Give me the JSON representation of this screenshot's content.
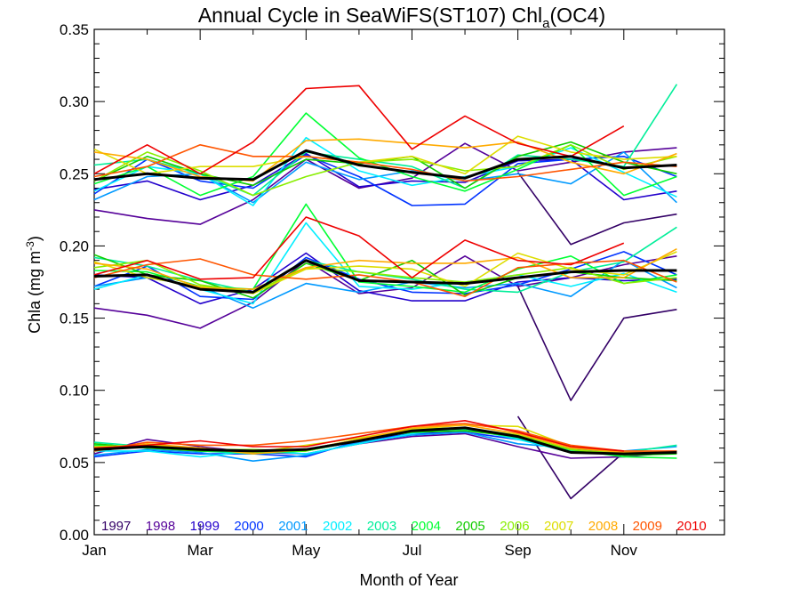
{
  "chart_data": {
    "type": "line",
    "title": "Annual Cycle in SeaWiFS(ST107) Chl",
    "title_subscript": "a",
    "title_suffix": "(OC4)",
    "xlabel": "Month of Year",
    "ylabel": "Chla (mg m",
    "ylabel_superscript": "-3",
    "ylabel_suffix": ")",
    "xlim": [
      1,
      12.9
    ],
    "ylim": [
      0,
      0.35
    ],
    "x_ticks": [
      1,
      3,
      5,
      7,
      9,
      11
    ],
    "x_tick_labels": [
      "Jan",
      "Mar",
      "May",
      "Jul",
      "Sep",
      "Nov"
    ],
    "y_ticks": [
      0.0,
      0.05,
      0.1,
      0.15,
      0.2,
      0.25,
      0.3,
      0.35
    ],
    "y_tick_labels": [
      "0.00",
      "0.05",
      "0.10",
      "0.15",
      "0.20",
      "0.25",
      "0.30",
      "0.35"
    ],
    "grid": false,
    "legend_placement": "bottom inside",
    "x": [
      1,
      2,
      3,
      4,
      5,
      6,
      7,
      8,
      9,
      10,
      11,
      12
    ],
    "groups": [
      "upper",
      "middle",
      "lower"
    ],
    "series": [
      {
        "name": "1997",
        "color": "#330066",
        "values": {
          "upper": [
            null,
            null,
            null,
            null,
            null,
            null,
            null,
            null,
            0.251,
            0.201,
            0.216,
            0.222
          ],
          "middle": [
            null,
            null,
            null,
            null,
            null,
            null,
            null,
            null,
            0.172,
            0.093,
            0.15,
            0.156
          ],
          "lower": [
            null,
            null,
            null,
            null,
            null,
            null,
            null,
            null,
            0.082,
            0.025,
            0.057,
            0.058
          ]
        }
      },
      {
        "name": "1998",
        "color": "#550099",
        "values": {
          "upper": [
            0.225,
            0.219,
            0.215,
            0.232,
            0.26,
            0.24,
            0.247,
            0.271,
            0.252,
            0.258,
            0.265,
            0.268
          ],
          "middle": [
            0.157,
            0.152,
            0.143,
            0.161,
            0.19,
            0.167,
            0.171,
            0.193,
            0.172,
            0.178,
            0.187,
            0.193
          ],
          "lower": [
            0.056,
            0.066,
            0.061,
            0.057,
            0.056,
            0.063,
            0.068,
            0.07,
            0.061,
            0.053,
            0.054,
            0.057
          ]
        }
      },
      {
        "name": "1999",
        "color": "#2200cc",
        "values": {
          "upper": [
            0.239,
            0.245,
            0.232,
            0.242,
            0.264,
            0.241,
            0.245,
            0.244,
            0.259,
            0.26,
            0.232,
            0.238
          ],
          "middle": [
            0.18,
            0.178,
            0.16,
            0.17,
            0.195,
            0.169,
            0.162,
            0.162,
            0.175,
            0.178,
            0.176,
            0.177
          ]
        }
      },
      {
        "name": "2000",
        "color": "#0033ff",
        "values": {
          "upper": [
            0.236,
            0.26,
            0.245,
            0.24,
            0.263,
            0.248,
            0.228,
            0.229,
            0.257,
            0.26,
            0.262,
            0.248
          ],
          "middle": [
            0.172,
            0.186,
            0.165,
            0.163,
            0.192,
            0.177,
            0.168,
            0.167,
            0.173,
            0.184,
            0.196,
            0.18
          ],
          "lower": [
            0.054,
            0.058,
            0.056,
            0.056,
            0.054,
            0.065,
            0.07,
            0.071,
            0.066,
            0.059,
            0.057,
            0.058
          ]
        }
      },
      {
        "name": "2001",
        "color": "#0099ff",
        "values": {
          "upper": [
            0.232,
            0.248,
            0.25,
            0.23,
            0.258,
            0.246,
            0.252,
            0.245,
            0.25,
            0.243,
            0.265,
            0.23
          ],
          "middle": [
            0.172,
            0.178,
            0.172,
            0.157,
            0.174,
            0.168,
            0.175,
            0.171,
            0.174,
            0.165,
            0.19,
            0.171
          ],
          "lower": [
            0.055,
            0.059,
            0.057,
            0.051,
            0.055,
            0.064,
            0.069,
            0.071,
            0.063,
            0.06,
            0.058,
            0.061
          ]
        }
      },
      {
        "name": "2002",
        "color": "#00eeff",
        "values": {
          "upper": [
            0.238,
            0.255,
            0.25,
            0.228,
            0.275,
            0.252,
            0.242,
            0.248,
            0.255,
            0.268,
            0.251,
            0.234
          ],
          "middle": [
            0.17,
            0.18,
            0.17,
            0.16,
            0.216,
            0.172,
            0.17,
            0.175,
            0.18,
            0.172,
            0.181,
            0.168
          ],
          "lower": [
            0.058,
            0.058,
            0.054,
            0.058,
            0.056,
            0.063,
            0.07,
            0.074,
            0.066,
            0.057,
            0.056,
            0.058
          ]
        }
      },
      {
        "name": "2003",
        "color": "#00ee99",
        "values": {
          "upper": [
            0.256,
            0.26,
            0.25,
            0.235,
            0.265,
            0.26,
            0.255,
            0.24,
            0.263,
            0.26,
            0.255,
            0.312
          ],
          "middle": [
            0.192,
            0.186,
            0.176,
            0.168,
            0.19,
            0.182,
            0.177,
            0.17,
            0.168,
            0.182,
            0.189,
            0.213
          ],
          "lower": [
            0.064,
            0.061,
            0.058,
            0.056,
            0.058,
            0.065,
            0.072,
            0.073,
            0.067,
            0.058,
            0.057,
            0.062
          ]
        }
      },
      {
        "name": "2004",
        "color": "#00ff33",
        "values": {
          "upper": [
            0.243,
            0.255,
            0.235,
            0.248,
            0.292,
            0.261,
            0.248,
            0.238,
            0.253,
            0.27,
            0.235,
            0.248
          ],
          "middle": [
            0.183,
            0.182,
            0.172,
            0.17,
            0.229,
            0.175,
            0.172,
            0.168,
            0.184,
            0.193,
            0.174,
            0.18
          ],
          "lower": [
            0.062,
            0.06,
            0.059,
            0.057,
            0.058,
            0.065,
            0.073,
            0.074,
            0.068,
            0.059,
            0.054,
            0.053
          ]
        }
      },
      {
        "name": "2005",
        "color": "#11cc00",
        "values": {
          "upper": [
            0.245,
            0.262,
            0.25,
            0.242,
            0.26,
            0.257,
            0.262,
            0.24,
            0.262,
            0.272,
            0.258,
            0.25
          ],
          "middle": [
            0.194,
            0.18,
            0.176,
            0.164,
            0.188,
            0.176,
            0.19,
            0.166,
            0.178,
            0.182,
            0.178,
            0.176
          ],
          "lower": [
            0.063,
            0.06,
            0.058,
            0.058,
            0.059,
            0.066,
            0.071,
            0.072,
            0.068,
            0.059,
            0.055,
            0.056
          ]
        }
      },
      {
        "name": "2006",
        "color": "#88ee00",
        "values": {
          "upper": [
            0.245,
            0.265,
            0.252,
            0.235,
            0.248,
            0.258,
            0.26,
            0.252,
            0.255,
            0.27,
            0.253,
            0.262
          ],
          "middle": [
            0.185,
            0.19,
            0.173,
            0.168,
            0.185,
            0.182,
            0.178,
            0.175,
            0.18,
            0.185,
            0.174,
            0.178
          ],
          "lower": [
            0.06,
            0.061,
            0.059,
            0.059,
            0.058,
            0.066,
            0.072,
            0.074,
            0.069,
            0.059,
            0.056,
            0.057
          ]
        }
      },
      {
        "name": "2007",
        "color": "#dddd00",
        "values": {
          "upper": [
            0.267,
            0.25,
            0.255,
            0.255,
            0.262,
            0.258,
            0.262,
            0.25,
            0.276,
            0.265,
            0.26,
            0.262
          ],
          "middle": [
            0.189,
            0.178,
            0.172,
            0.167,
            0.184,
            0.186,
            0.184,
            0.172,
            0.195,
            0.184,
            0.18,
            0.196
          ],
          "lower": [
            0.061,
            0.062,
            0.06,
            0.057,
            0.062,
            0.067,
            0.073,
            0.076,
            0.075,
            0.061,
            0.057,
            0.057
          ]
        }
      },
      {
        "name": "2008",
        "color": "#ffaa00",
        "values": {
          "upper": [
            0.265,
            0.26,
            0.248,
            0.245,
            0.273,
            0.274,
            0.271,
            0.268,
            0.272,
            0.258,
            0.25,
            0.264
          ],
          "middle": [
            0.188,
            0.184,
            0.171,
            0.17,
            0.185,
            0.19,
            0.188,
            0.188,
            0.192,
            0.178,
            0.178,
            0.198
          ],
          "lower": [
            0.058,
            0.063,
            0.06,
            0.056,
            0.059,
            0.066,
            0.074,
            0.076,
            0.07,
            0.06,
            0.057,
            0.057
          ]
        }
      },
      {
        "name": "2009",
        "color": "#ff5500",
        "values": {
          "upper": [
            0.248,
            0.255,
            0.27,
            0.262,
            0.262,
            0.258,
            0.253,
            0.245,
            0.248,
            0.253,
            0.258,
            0.255
          ],
          "middle": [
            0.178,
            0.187,
            0.191,
            0.18,
            0.177,
            0.18,
            0.175,
            0.165,
            0.185,
            0.188,
            0.19,
            0.175
          ],
          "lower": [
            0.058,
            0.064,
            0.062,
            0.062,
            0.065,
            0.07,
            0.075,
            0.077,
            0.072,
            0.062,
            0.058,
            0.058
          ]
        }
      },
      {
        "name": "2010",
        "color": "#ee0000",
        "values": {
          "upper": [
            0.25,
            0.27,
            0.25,
            0.272,
            0.309,
            0.311,
            0.267,
            0.29,
            0.271,
            0.262,
            0.283,
            null
          ],
          "middle": [
            0.18,
            0.19,
            0.177,
            0.178,
            0.22,
            0.207,
            0.178,
            0.204,
            0.19,
            0.187,
            0.202,
            null
          ],
          "lower": [
            0.06,
            0.062,
            0.065,
            0.061,
            0.061,
            0.068,
            0.075,
            0.079,
            0.071,
            0.061,
            0.058,
            null
          ]
        }
      },
      {
        "name": "",
        "color": "#000000",
        "bold": true,
        "values": {
          "upper": [
            0.246,
            0.25,
            0.247,
            0.246,
            0.266,
            0.256,
            0.251,
            0.247,
            0.26,
            0.262,
            0.254,
            0.256
          ],
          "middle": [
            0.179,
            0.18,
            0.17,
            0.168,
            0.19,
            0.176,
            0.175,
            0.174,
            0.178,
            0.182,
            0.183,
            0.183
          ],
          "lower": [
            0.059,
            0.061,
            0.059,
            0.058,
            0.059,
            0.065,
            0.072,
            0.074,
            0.068,
            0.057,
            0.056,
            0.057
          ]
        }
      }
    ]
  }
}
